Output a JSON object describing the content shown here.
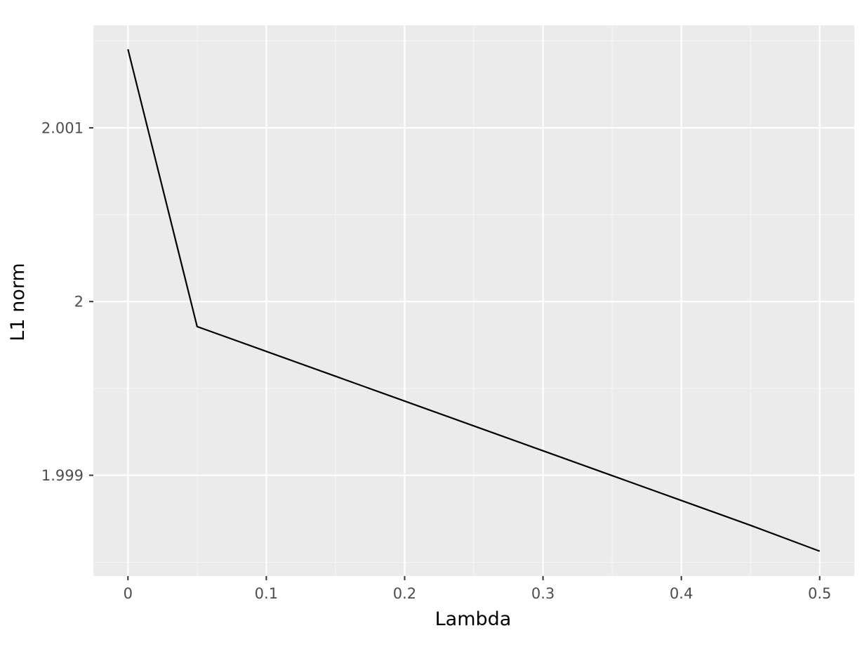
{
  "chart_data": {
    "type": "line",
    "title": "",
    "xlabel": "Lambda",
    "ylabel": "L1 norm",
    "x": [
      0,
      0.05,
      0.1,
      0.15,
      0.2,
      0.25,
      0.3,
      0.35,
      0.4,
      0.45,
      0.5
    ],
    "series": [
      {
        "values": [
          2.001452,
          1.999856,
          1.999713,
          1.99957,
          1.999427,
          1.999284,
          1.999141,
          1.998998,
          1.998855,
          1.998712,
          1.998563
        ]
      }
    ],
    "xlim": [
      -0.025,
      0.525
    ],
    "ylim": [
      1.99842,
      2.00159
    ],
    "x_ticks": [
      0,
      0.1,
      0.2,
      0.3,
      0.4,
      0.5
    ],
    "x_tick_labels": [
      "0",
      "0.1",
      "0.2",
      "0.3",
      "0.4",
      "0.5"
    ],
    "x_minor_ticks": [
      0.05,
      0.15,
      0.25,
      0.35,
      0.45
    ],
    "y_ticks": [
      1.999,
      2,
      2.001
    ],
    "y_tick_labels": [
      "1.999",
      "2",
      "2.001"
    ],
    "y_minor_ticks": [
      1.9985,
      1.9995,
      2.0005,
      2.0015
    ],
    "grid": true,
    "legend": "none",
    "colors": {
      "panel_background": "#ebebeb",
      "grid_major": "#ffffff",
      "grid_minor": "#f5f5f5",
      "line": "#000000",
      "tick": "#333333"
    }
  }
}
